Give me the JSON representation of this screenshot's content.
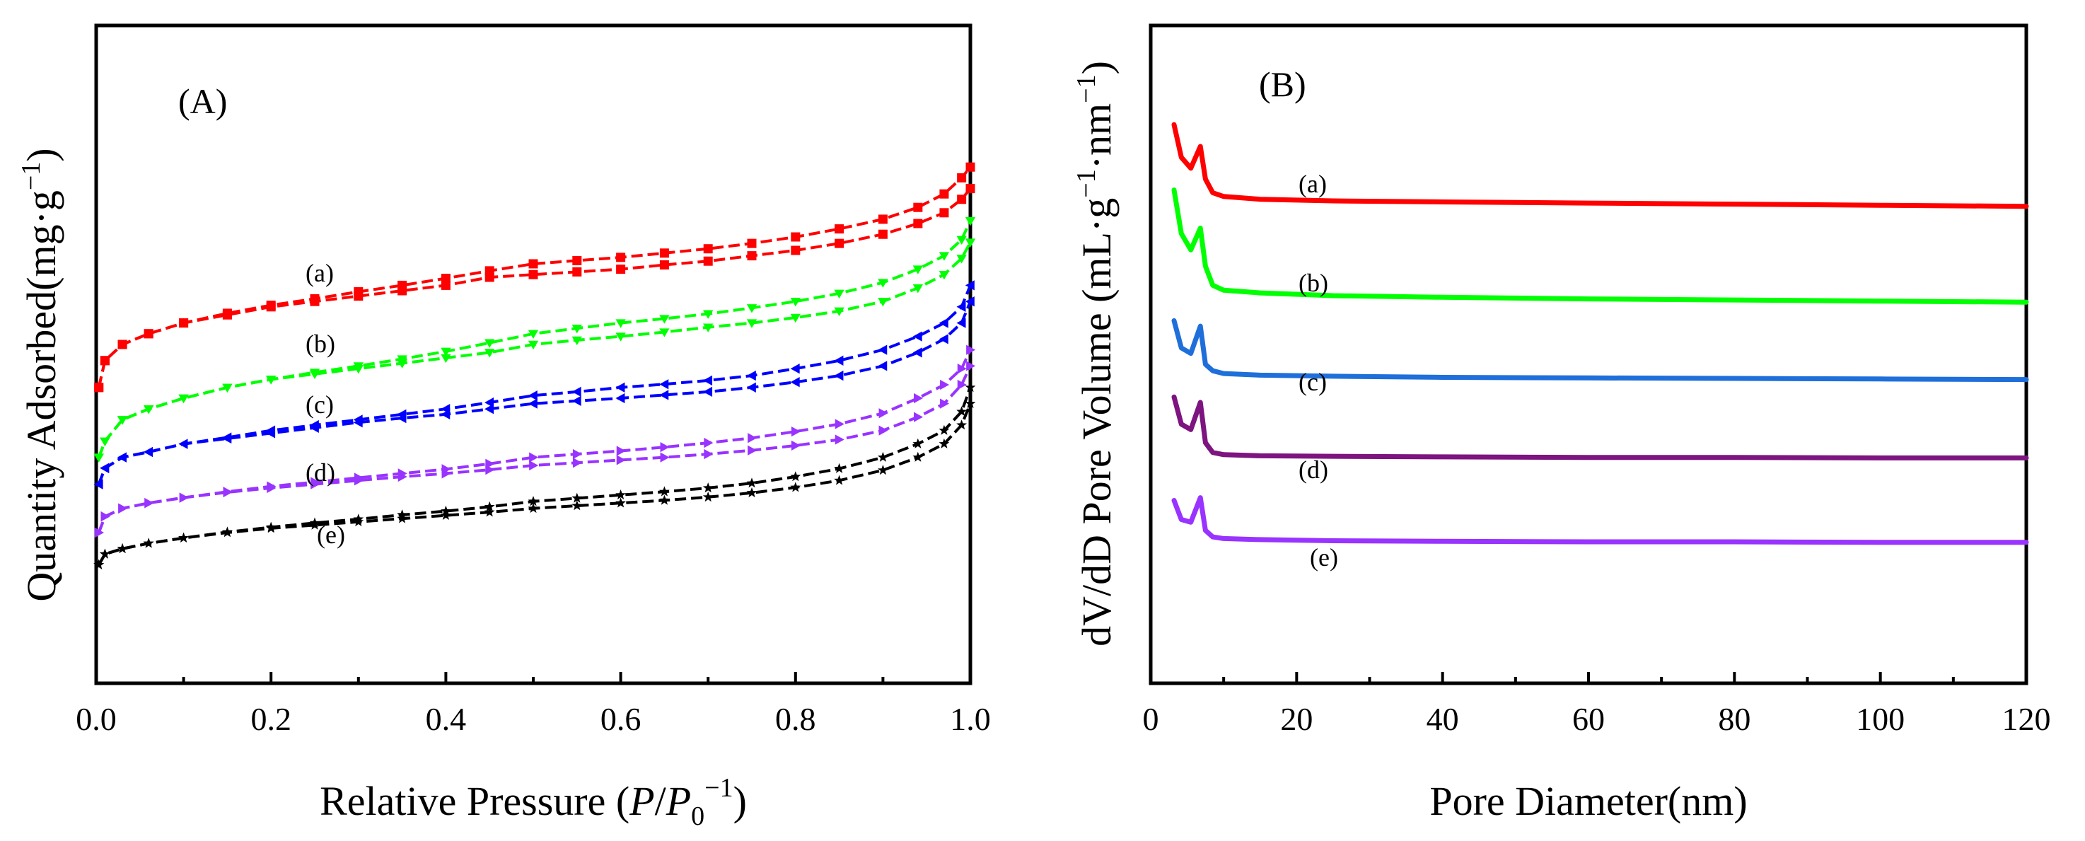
{
  "figure": {
    "panel_a_label": "(A)",
    "panel_b_label": "(B)"
  },
  "chart_data": [
    {
      "type": "line",
      "panel": "(A)",
      "title": "",
      "xlabel_prefix": "Relative Pressure (",
      "xlabel_italic_p": "P",
      "xlabel_slash": "/",
      "xlabel_italic_p0": "P",
      "xlabel_sub": "0",
      "xlabel_sup": "−1",
      "xlabel_suffix": ")",
      "ylabel_main": "Quantity Adsorbed(mg·g",
      "ylabel_sup": "−1",
      "ylabel_end": ")",
      "xlim": [
        0,
        1
      ],
      "ylim": [
        0,
        100
      ],
      "xticks": [
        0,
        0.2,
        0.4,
        0.6,
        0.8,
        1
      ],
      "xtick_labels": [
        "0.0",
        "0.2",
        "0.4",
        "0.6",
        "0.8",
        "1.0"
      ],
      "yticks_shown": false,
      "series": [
        {
          "name": "(a)",
          "color": "#ff0000",
          "marker": "square",
          "x": [
            0.003,
            0.01,
            0.03,
            0.06,
            0.1,
            0.15,
            0.2,
            0.25,
            0.3,
            0.35,
            0.4,
            0.45,
            0.5,
            0.55,
            0.6,
            0.65,
            0.7,
            0.75,
            0.8,
            0.85,
            0.9,
            0.94,
            0.97,
            0.99,
            1.0
          ],
          "adsorption": [
            47,
            52,
            55,
            57,
            59,
            60.5,
            62,
            63,
            64,
            65,
            66,
            67.5,
            68,
            68.5,
            69,
            69.8,
            70.5,
            71.5,
            72.5,
            73.8,
            75.5,
            77.5,
            79.5,
            82,
            84
          ],
          "desorption": [
            47,
            52,
            55,
            57,
            59,
            60.8,
            62.3,
            63.5,
            64.8,
            66,
            67.3,
            68.7,
            70,
            70.6,
            71.2,
            72,
            72.8,
            73.8,
            75,
            76.5,
            78.3,
            80.5,
            83,
            86,
            88
          ]
        },
        {
          "name": "(b)",
          "color": "#00ff00",
          "marker": "triangle-down",
          "x": [
            0.003,
            0.01,
            0.03,
            0.06,
            0.1,
            0.15,
            0.2,
            0.25,
            0.3,
            0.35,
            0.4,
            0.45,
            0.5,
            0.55,
            0.6,
            0.65,
            0.7,
            0.75,
            0.8,
            0.85,
            0.9,
            0.94,
            0.97,
            0.99,
            1.0
          ],
          "adsorption": [
            34,
            37,
            41,
            43,
            45,
            47,
            48.5,
            49.5,
            50.5,
            51.5,
            52.5,
            53.5,
            55,
            55.8,
            56.5,
            57.3,
            58.2,
            59,
            60,
            61.2,
            63,
            65.5,
            68,
            71,
            74
          ],
          "desorption": [
            34,
            37,
            41,
            43,
            45,
            47,
            48.5,
            49.8,
            51,
            52.3,
            53.7,
            55.3,
            57,
            58,
            59,
            59.8,
            60.7,
            61.8,
            63,
            64.5,
            66.5,
            69,
            71.5,
            74.5,
            78
          ]
        },
        {
          "name": "(c)",
          "color": "#0000ff",
          "marker": "triangle-left",
          "x": [
            0.003,
            0.01,
            0.03,
            0.06,
            0.1,
            0.15,
            0.2,
            0.25,
            0.3,
            0.35,
            0.4,
            0.45,
            0.5,
            0.55,
            0.6,
            0.65,
            0.7,
            0.75,
            0.8,
            0.85,
            0.9,
            0.94,
            0.97,
            0.99,
            1.0
          ],
          "adsorption": [
            29,
            32,
            34,
            35,
            36.5,
            37.5,
            38.5,
            39.5,
            40.5,
            41.3,
            42,
            43,
            44,
            44.5,
            45,
            45.6,
            46.2,
            47,
            48,
            49.2,
            51,
            53.5,
            56,
            59,
            63
          ],
          "desorption": [
            29,
            32,
            34,
            35,
            36.5,
            37.7,
            39,
            40,
            41,
            42,
            43,
            44.2,
            45.5,
            46.2,
            47,
            47.6,
            48.3,
            49.2,
            50.5,
            52,
            54,
            56.5,
            59,
            62,
            66
          ]
        },
        {
          "name": "(d)",
          "color": "#9933ff",
          "marker": "triangle-right",
          "x": [
            0.003,
            0.01,
            0.03,
            0.06,
            0.1,
            0.15,
            0.2,
            0.25,
            0.3,
            0.35,
            0.4,
            0.45,
            0.5,
            0.55,
            0.6,
            0.65,
            0.7,
            0.75,
            0.8,
            0.85,
            0.9,
            0.94,
            0.97,
            0.99,
            1.0
          ],
          "adsorption": [
            20,
            23,
            24.5,
            25.5,
            26.5,
            27.5,
            28.3,
            29,
            29.7,
            30.4,
            31,
            31.7,
            32.5,
            33,
            33.5,
            34,
            34.6,
            35.3,
            36.2,
            37.3,
            39,
            41.5,
            44,
            47.5,
            51
          ],
          "desorption": [
            20,
            23,
            24.5,
            25.5,
            26.5,
            27.6,
            28.6,
            29.4,
            30.2,
            31,
            31.8,
            32.8,
            34,
            34.6,
            35.2,
            35.9,
            36.7,
            37.6,
            38.8,
            40.2,
            42.2,
            45,
            47.5,
            50.5,
            54
          ]
        },
        {
          "name": "(e)",
          "color": "#000000",
          "marker": "star",
          "x": [
            0.003,
            0.01,
            0.03,
            0.06,
            0.1,
            0.15,
            0.2,
            0.25,
            0.3,
            0.35,
            0.4,
            0.45,
            0.5,
            0.55,
            0.6,
            0.65,
            0.7,
            0.75,
            0.8,
            0.85,
            0.9,
            0.94,
            0.97,
            0.99,
            1.0
          ],
          "adsorption": [
            14,
            16,
            17,
            18,
            19,
            20,
            20.8,
            21.4,
            22,
            22.6,
            23.2,
            23.8,
            24.5,
            25,
            25.5,
            26,
            26.6,
            27.4,
            28.4,
            29.7,
            31.6,
            34,
            36.5,
            40,
            44
          ],
          "desorption": [
            14,
            16,
            17,
            18,
            19,
            20.1,
            21,
            21.8,
            22.5,
            23.3,
            24,
            24.8,
            25.8,
            26.4,
            27,
            27.6,
            28.3,
            29.2,
            30.4,
            31.9,
            34,
            36.5,
            39,
            42.5,
            47
          ]
        }
      ]
    },
    {
      "type": "line",
      "panel": "(B)",
      "title": "",
      "xlabel": "Pore Diameter(nm)",
      "ylabel_main": "dV/dD Pore Volume (mL·g",
      "ylabel_sup1": "−1",
      "ylabel_mid": "·nm",
      "ylabel_sup2": "−1",
      "ylabel_end": ")",
      "xlim": [
        0,
        120
      ],
      "ylim": [
        0,
        100
      ],
      "xticks": [
        0,
        20,
        40,
        60,
        80,
        100,
        120
      ],
      "xtick_labels": [
        "0",
        "20",
        "40",
        "60",
        "80",
        "100",
        "120"
      ],
      "yticks_shown": false,
      "series": [
        {
          "name": "(a)",
          "color": "#ff0000",
          "x": [
            3.2,
            4.2,
            5.5,
            6.8,
            7.5,
            8.5,
            10,
            15,
            25,
            40,
            60,
            80,
            100,
            120
          ],
          "y": [
            94,
            88,
            86,
            90,
            84,
            81.5,
            80.8,
            80.3,
            80,
            79.8,
            79.6,
            79.4,
            79.2,
            79
          ]
        },
        {
          "name": "(b)",
          "color": "#00ff00",
          "x": [
            3.2,
            4.2,
            5.5,
            6.8,
            7.5,
            8.5,
            10,
            15,
            25,
            40,
            60,
            80,
            100,
            120
          ],
          "y": [
            82,
            74,
            71,
            75,
            68,
            64.5,
            63.6,
            63.1,
            62.6,
            62.3,
            62,
            61.8,
            61.6,
            61.4
          ]
        },
        {
          "name": "(c)",
          "color": "#1f6fdb",
          "x": [
            3.2,
            4.2,
            5.5,
            6.8,
            7.5,
            8.5,
            10,
            15,
            25,
            40,
            60,
            80,
            100,
            120
          ],
          "y": [
            58,
            53,
            52,
            57,
            50,
            48.8,
            48.3,
            48,
            47.8,
            47.6,
            47.5,
            47.4,
            47.3,
            47.2
          ]
        },
        {
          "name": "(d)",
          "color": "#7d1480",
          "x": [
            3.2,
            4.2,
            5.5,
            6.8,
            7.5,
            8.5,
            10,
            15,
            25,
            40,
            60,
            80,
            100,
            120
          ],
          "y": [
            44,
            39,
            38,
            43,
            35.6,
            33.8,
            33.4,
            33.2,
            33.1,
            33,
            32.9,
            32.9,
            32.8,
            32.8
          ]
        },
        {
          "name": "(e)",
          "color": "#9933ff",
          "x": [
            3.2,
            4.2,
            5.5,
            6.8,
            7.5,
            8.5,
            10,
            15,
            25,
            40,
            60,
            80,
            100,
            120
          ],
          "y": [
            25,
            21.5,
            21,
            25.5,
            19.5,
            18.3,
            18,
            17.8,
            17.6,
            17.5,
            17.4,
            17.4,
            17.3,
            17.3
          ]
        }
      ]
    }
  ]
}
